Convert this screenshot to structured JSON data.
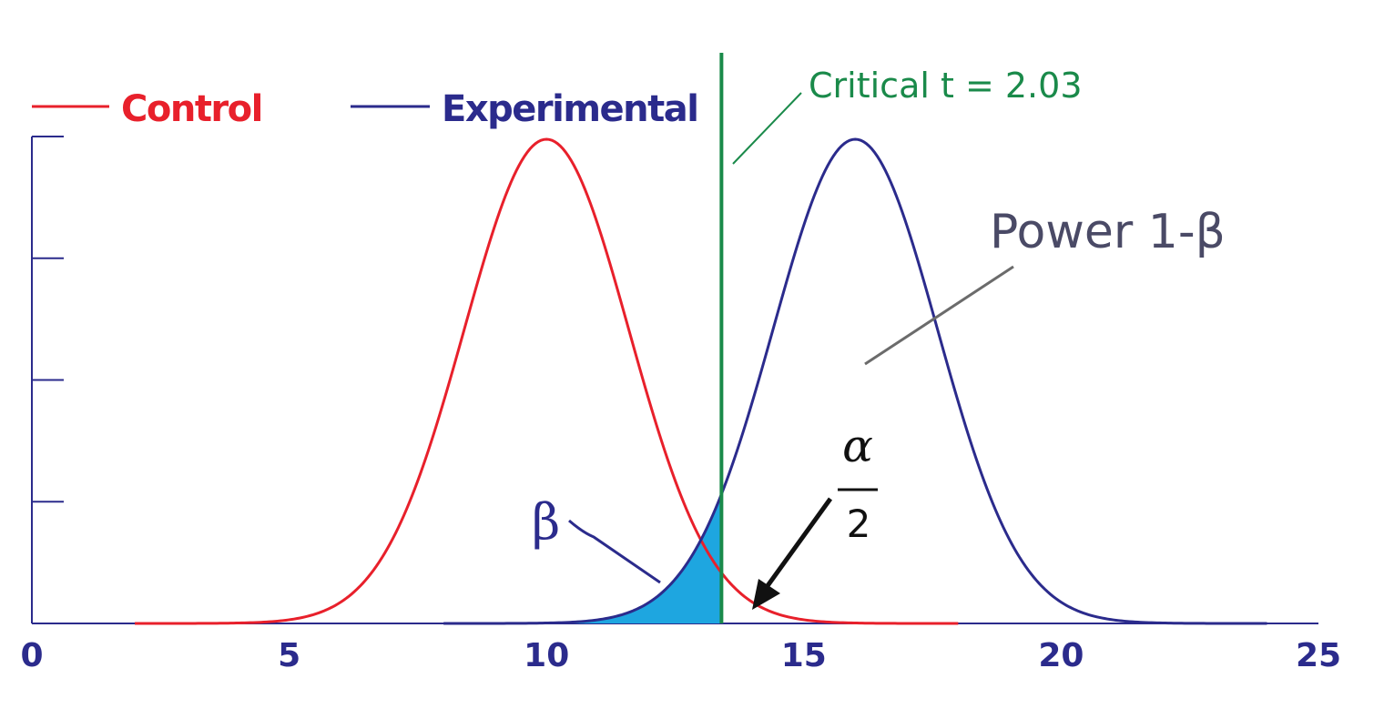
{
  "chart_data": {
    "type": "line",
    "title": "",
    "xlabel": "",
    "ylabel": "",
    "xlim": [
      0,
      25
    ],
    "x_ticks": [
      "0",
      "5",
      "10",
      "15",
      "20",
      "25"
    ],
    "y_tick_count": 5,
    "grid": false,
    "legend_placement": "top-left",
    "series": [
      {
        "name": "Control",
        "color": "#e8202b",
        "distribution": "normal",
        "mean": 10,
        "sd": 1.6,
        "x_range": [
          2,
          18
        ]
      },
      {
        "name": "Experimental",
        "color": "#2b2b8c",
        "distribution": "normal",
        "mean": 16,
        "sd": 1.6,
        "x_range": [
          8,
          24
        ]
      }
    ],
    "critical_line": {
      "x": 13.4,
      "color": "#1a8a4a",
      "label": "Critical t = 2.03"
    },
    "shaded_region": {
      "series": "Experimental",
      "from": 8,
      "to": 13.4,
      "color": "#1ea6e0",
      "label": "β"
    },
    "annotations": {
      "power_label": "Power 1-β",
      "power_color": "#4a4a66",
      "beta_label": "β",
      "beta_color": "#2b2b8c",
      "alpha_numerator": "α",
      "alpha_denominator": "2"
    }
  }
}
